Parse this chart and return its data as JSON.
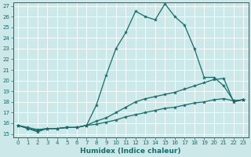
{
  "xlabel": "Humidex (Indice chaleur)",
  "bg_color": "#cce8e8",
  "grid_color": "#ffffff",
  "line_color": "#1a6b6b",
  "ylim": [
    15,
    27
  ],
  "xlim": [
    -0.5,
    23.5
  ],
  "yticks": [
    15,
    16,
    17,
    18,
    19,
    20,
    21,
    22,
    23,
    24,
    25,
    26,
    27
  ],
  "xticks": [
    0,
    1,
    2,
    3,
    4,
    5,
    6,
    7,
    8,
    9,
    10,
    11,
    12,
    13,
    14,
    15,
    16,
    17,
    18,
    19,
    20,
    21,
    22,
    23
  ],
  "line1_x": [
    0,
    1,
    2,
    3,
    4,
    5,
    6,
    7,
    8,
    9,
    10,
    11,
    12,
    13,
    14,
    15,
    16,
    17,
    18,
    19,
    20,
    21,
    22,
    23
  ],
  "line1_y": [
    15.8,
    15.5,
    15.2,
    15.5,
    15.5,
    15.6,
    15.6,
    15.8,
    17.7,
    20.5,
    23.0,
    24.5,
    26.5,
    26.0,
    25.7,
    27.2,
    26.0,
    25.2,
    23.0,
    20.3,
    20.3,
    19.5,
    18.1,
    18.2
  ],
  "line2_x": [
    0,
    1,
    2,
    3,
    4,
    5,
    6,
    7,
    8,
    9,
    10,
    11,
    12,
    13,
    14,
    15,
    16,
    17,
    18,
    19,
    20,
    21,
    22,
    23
  ],
  "line2_y": [
    15.8,
    15.5,
    15.3,
    15.5,
    15.5,
    15.6,
    15.6,
    15.8,
    16.2,
    16.5,
    17.0,
    17.5,
    18.0,
    18.3,
    18.5,
    18.7,
    18.9,
    19.2,
    19.5,
    19.8,
    20.1,
    20.2,
    18.0,
    18.2
  ],
  "line3_x": [
    0,
    1,
    2,
    3,
    4,
    5,
    6,
    7,
    8,
    9,
    10,
    11,
    12,
    13,
    14,
    15,
    16,
    17,
    18,
    19,
    20,
    21,
    22,
    23
  ],
  "line3_y": [
    15.8,
    15.6,
    15.4,
    15.5,
    15.5,
    15.6,
    15.6,
    15.8,
    15.9,
    16.1,
    16.3,
    16.6,
    16.8,
    17.0,
    17.2,
    17.4,
    17.5,
    17.7,
    17.9,
    18.0,
    18.2,
    18.3,
    18.1,
    18.2
  ],
  "tick_fontsize": 5.0,
  "xlabel_fontsize": 6.5,
  "marker_size": 3.0,
  "linewidth": 0.9
}
